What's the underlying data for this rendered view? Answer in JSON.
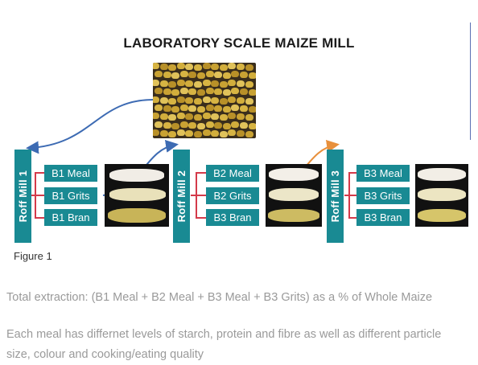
{
  "figure": {
    "title": "LABORATORY SCALE MAIZE MILL",
    "caption": "Figure 1",
    "mills": [
      {
        "label": "Roff Mill 1",
        "products": [
          "B1 Meal",
          "B1 Grits",
          "B1 Bran"
        ]
      },
      {
        "label": "Roff Mill 2",
        "products": [
          "B2 Meal",
          "B2 Grits",
          "B3 Bran"
        ]
      },
      {
        "label": "Roff Mill 3",
        "products": [
          "B3 Meal",
          "B3 Grits",
          "B3 Bran"
        ]
      }
    ],
    "arrow_colors": {
      "to_mill_1": "#3d6bb3",
      "to_mill_2": "#3d6bb3",
      "to_mill_3": "#e8903c"
    },
    "teal": "#198a93",
    "bracket_color": "#d43a4a"
  },
  "text": {
    "extraction": "Total extraction: (B1 Meal + B2 Meal + B3 Meal + B3 Grits) as a % of Whole Maize",
    "quality_line1": "Each meal has differnet levels of starch, protein and fibre as well as different particle",
    "quality_line2": "size, colour and cooking/eating quality"
  }
}
